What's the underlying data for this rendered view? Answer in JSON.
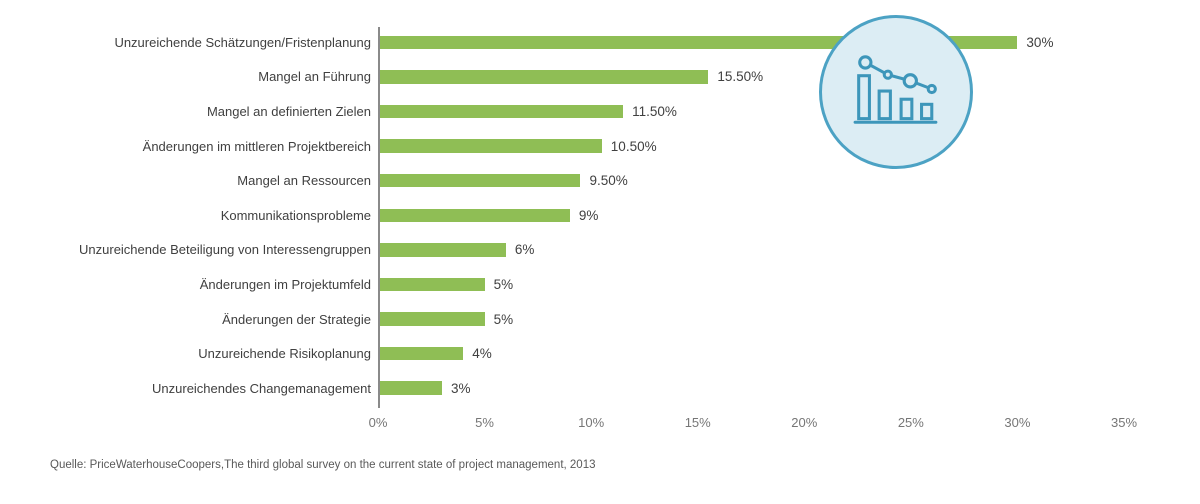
{
  "page": {
    "background": "#ffffff"
  },
  "source_note": "Quelle: PriceWaterhouseCoopers,The third global survey on the current state of project management, 2013",
  "badge": {
    "icon": "declining-bar-line-chart-icon",
    "fill_color": "#DCEDF4",
    "border_color": "#4CA2C4",
    "icon_color": "#3D96BA"
  },
  "chart_data": {
    "type": "bar",
    "orientation": "horizontal",
    "title": "",
    "xlabel": "",
    "ylabel": "",
    "xlim": [
      0,
      35
    ],
    "grid": false,
    "legend": false,
    "bar_color": "#8FBE55",
    "label_color": "#404040",
    "tick_color": "#767676",
    "categories": [
      "Unzureichende Schätzungen/Fristenplanung",
      "Mangel an Führung",
      "Mangel an definierten Zielen",
      "Änderungen im mittleren Projektbereich",
      "Mangel an Ressourcen",
      "Kommunikationsprobleme",
      "Unzureichende Beteiligung von Interessengruppen",
      "Änderungen im Projektumfeld",
      "Änderungen der Strategie",
      "Unzureichende Risikoplanung",
      "Unzureichendes Changemanagement"
    ],
    "values": [
      30,
      15.5,
      11.5,
      10.5,
      9.5,
      9,
      6,
      5,
      5,
      4,
      3
    ],
    "value_labels": [
      "30%",
      "15.50%",
      "11.50%",
      "10.50%",
      "9.50%",
      "9%",
      "6%",
      "5%",
      "5%",
      "4%",
      "3%"
    ],
    "x_ticks": [
      "0%",
      "5%",
      "10%",
      "15%",
      "20%",
      "25%",
      "30%",
      "35%"
    ],
    "x_tick_values": [
      0,
      5,
      10,
      15,
      20,
      25,
      30,
      35
    ]
  }
}
